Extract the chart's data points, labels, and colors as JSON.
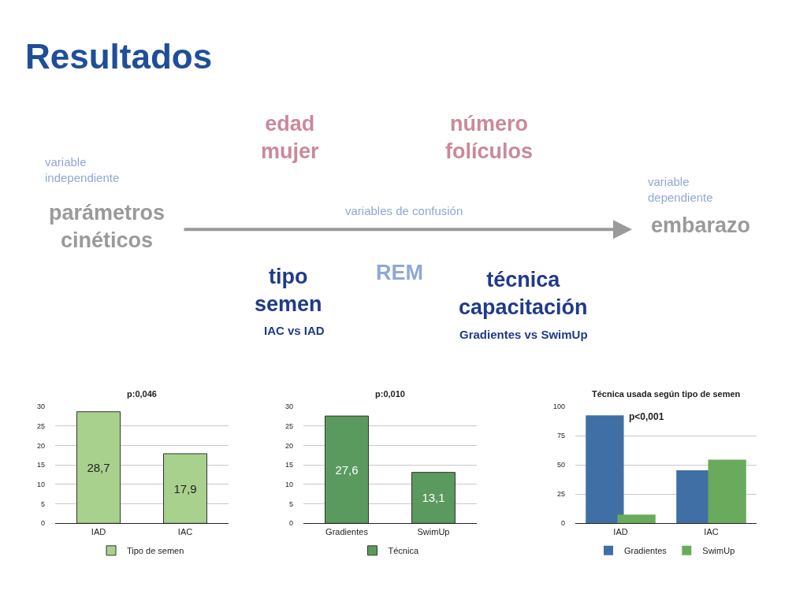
{
  "chart_data": [
    {
      "type": "other",
      "title": "Resultados",
      "annotations": [
        "edad\nmujer",
        "número\nfolículos",
        "variable\nindependiente",
        "parámetros\ncinéticos",
        "variables de confusión",
        "variable\ndependiente",
        "embarazo",
        "tipo\nsemen",
        "IAC vs IAD",
        "REM",
        "técnica\ncapacitación",
        "Gradientes vs SwimUp"
      ]
    },
    {
      "type": "bar",
      "title": "p:0,046",
      "categories": [
        "IAD",
        "IAC"
      ],
      "series": [
        {
          "name": "Tipo de semen",
          "color": "#a9d18e",
          "values": [
            28.7,
            17.9
          ],
          "value_labels": [
            "28,7",
            "17,9"
          ]
        }
      ],
      "ylim": [
        0,
        30
      ],
      "yticks": [
        0,
        5,
        10,
        15,
        20,
        25,
        30
      ],
      "grid": "y",
      "legend": "bottom"
    },
    {
      "type": "bar",
      "title": "p:0,010",
      "categories": [
        "Gradientes",
        "SwimUp"
      ],
      "series": [
        {
          "name": "Técnica",
          "color": "#5b9a5e",
          "values": [
            27.6,
            13.1
          ],
          "value_labels": [
            "27,6",
            "13,1"
          ]
        }
      ],
      "ylim": [
        0,
        30
      ],
      "yticks": [
        0,
        5,
        10,
        15,
        20,
        25,
        30
      ],
      "grid": "y",
      "legend": "bottom"
    },
    {
      "type": "bar",
      "title": "Técnica usada según tipo de semen",
      "categories": [
        "IAD",
        "IAC"
      ],
      "series": [
        {
          "name": "Gradientes",
          "color": "#3f6fa5",
          "values": [
            92.5,
            45.5
          ]
        },
        {
          "name": "SwimUp",
          "color": "#6aaa5c",
          "values": [
            7.5,
            54.5
          ]
        }
      ],
      "ylim": [
        0,
        100
      ],
      "yticks": [
        0,
        25,
        50,
        75,
        100
      ],
      "grid": "y",
      "legend": "bottom",
      "annotations": [
        "p<0,001"
      ]
    }
  ]
}
